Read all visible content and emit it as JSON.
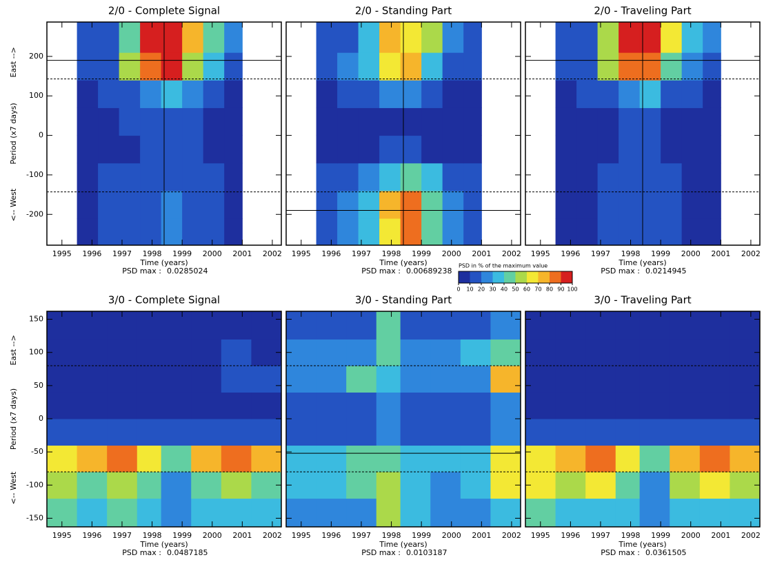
{
  "y_label_parts": [
    "<-- West",
    "Period (x7 days)",
    "East -->"
  ],
  "colorbar": {
    "label": "PSD in % of the maximum value",
    "ticks": [
      0,
      10,
      20,
      30,
      40,
      50,
      60,
      70,
      80,
      90,
      100
    ],
    "colors": [
      "#1e2f9e",
      "#2453c2",
      "#2f86dc",
      "#3bbbe0",
      "#62cfa2",
      "#abd94a",
      "#f3e834",
      "#f6b52b",
      "#ee6e1f",
      "#d61f1f"
    ]
  },
  "chart_data": [
    {
      "type": "heatmap",
      "title": "2/0 - Complete Signal",
      "x_label": "Time (years)",
      "psd_max_label": "PSD max :",
      "psd_max": 0.0285024,
      "xlim": [
        1994.5,
        2002.3
      ],
      "xticks": [
        1995,
        1996,
        1997,
        1998,
        1999,
        2000,
        2001,
        2002
      ],
      "ylim": [
        -278,
        287
      ],
      "yticks": [
        -200,
        -100,
        0,
        100,
        200
      ],
      "time_bins": [
        1995.5,
        1996.2,
        1996.9,
        1997.6,
        1998.3,
        1999.0,
        1999.7,
        2000.4,
        2001.0
      ],
      "period_bins": [
        -278,
        -210,
        -140,
        -70,
        0,
        70,
        140,
        210,
        287
      ],
      "z": [
        [
          5,
          10,
          15,
          15,
          20,
          15,
          10,
          5
        ],
        [
          5,
          10,
          10,
          15,
          20,
          15,
          10,
          5
        ],
        [
          5,
          10,
          15,
          15,
          15,
          10,
          10,
          5
        ],
        [
          5,
          5,
          5,
          10,
          10,
          10,
          5,
          5
        ],
        [
          5,
          5,
          10,
          10,
          10,
          10,
          5,
          5
        ],
        [
          5,
          10,
          15,
          25,
          30,
          20,
          10,
          5
        ],
        [
          10,
          15,
          50,
          80,
          90,
          55,
          30,
          15
        ],
        [
          10,
          15,
          40,
          90,
          95,
          70,
          40,
          20
        ]
      ],
      "hlines": [
        {
          "value": 190,
          "style": "solid"
        },
        {
          "value": 143,
          "style": "dashed"
        },
        {
          "value": -143,
          "style": "dashed"
        }
      ],
      "vlines": [
        1998.4
      ]
    },
    {
      "type": "heatmap",
      "title": "2/0 - Standing Part",
      "x_label": "Time (years)",
      "psd_max_label": "PSD max :",
      "psd_max": 0.00689238,
      "xlim": [
        1994.5,
        2002.3
      ],
      "xticks": [
        1995,
        1996,
        1997,
        1998,
        1999,
        2000,
        2001,
        2002
      ],
      "ylim": [
        -278,
        287
      ],
      "yticks": [
        -200,
        -100,
        0,
        100,
        200
      ],
      "time_bins": [
        1995.5,
        1996.2,
        1996.9,
        1997.6,
        1998.3,
        1999.0,
        1999.7,
        2000.4,
        2001.0
      ],
      "period_bins": [
        -278,
        -210,
        -140,
        -70,
        0,
        70,
        140,
        210,
        287
      ],
      "z": [
        [
          10,
          20,
          30,
          60,
          80,
          40,
          20,
          10
        ],
        [
          10,
          20,
          30,
          70,
          85,
          40,
          20,
          10
        ],
        [
          10,
          15,
          20,
          30,
          40,
          30,
          15,
          10
        ],
        [
          5,
          5,
          5,
          10,
          10,
          5,
          5,
          5
        ],
        [
          5,
          5,
          5,
          5,
          5,
          5,
          5,
          5
        ],
        [
          5,
          10,
          10,
          20,
          25,
          10,
          5,
          5
        ],
        [
          10,
          20,
          30,
          60,
          70,
          30,
          15,
          10
        ],
        [
          10,
          10,
          30,
          70,
          60,
          50,
          20,
          10
        ]
      ],
      "hlines": [
        {
          "value": 143,
          "style": "dashed"
        },
        {
          "value": -143,
          "style": "dashed"
        },
        {
          "value": -190,
          "style": "solid"
        }
      ],
      "vlines": [
        1998.4
      ]
    },
    {
      "type": "heatmap",
      "title": "2/0 - Traveling Part",
      "x_label": "Time (years)",
      "psd_max_label": "PSD max :",
      "psd_max": 0.0214945,
      "xlim": [
        1994.5,
        2002.3
      ],
      "xticks": [
        1995,
        1996,
        1997,
        1998,
        1999,
        2000,
        2001,
        2002
      ],
      "ylim": [
        -278,
        287
      ],
      "yticks": [
        -200,
        -100,
        0,
        100,
        200
      ],
      "time_bins": [
        1995.5,
        1996.2,
        1996.9,
        1997.6,
        1998.3,
        1999.0,
        1999.7,
        2000.4,
        2001.0
      ],
      "period_bins": [
        -278,
        -210,
        -140,
        -70,
        0,
        70,
        140,
        210,
        287
      ],
      "z": [
        [
          5,
          5,
          10,
          10,
          10,
          10,
          5,
          5
        ],
        [
          5,
          5,
          10,
          10,
          10,
          10,
          5,
          5
        ],
        [
          5,
          5,
          10,
          10,
          10,
          10,
          5,
          5
        ],
        [
          5,
          5,
          5,
          10,
          10,
          5,
          5,
          5
        ],
        [
          5,
          5,
          5,
          10,
          10,
          5,
          5,
          5
        ],
        [
          5,
          10,
          15,
          25,
          30,
          15,
          10,
          5
        ],
        [
          10,
          15,
          50,
          80,
          85,
          45,
          25,
          15
        ],
        [
          10,
          15,
          50,
          90,
          90,
          60,
          30,
          20
        ]
      ],
      "hlines": [
        {
          "value": 190,
          "style": "solid"
        },
        {
          "value": 143,
          "style": "dashed"
        },
        {
          "value": -143,
          "style": "dashed"
        }
      ],
      "vlines": [
        1998.4
      ]
    },
    {
      "type": "heatmap",
      "title": "3/0 - Complete Signal",
      "x_label": "Time (years)",
      "psd_max_label": "PSD max :",
      "psd_max": 0.0487185,
      "xlim": [
        1994.5,
        2002.3
      ],
      "xticks": [
        1995,
        1996,
        1997,
        1998,
        1999,
        2000,
        2001,
        2002
      ],
      "ylim": [
        -163,
        162
      ],
      "yticks": [
        -150,
        -100,
        -50,
        0,
        50,
        100,
        150
      ],
      "time_bins": [
        1994.5,
        1995.5,
        1996.5,
        1997.5,
        1998.3,
        1999.3,
        2000.3,
        2001.3,
        2002.3
      ],
      "period_bins": [
        -163,
        -120,
        -80,
        -40,
        0,
        40,
        80,
        120,
        162
      ],
      "z": [
        [
          40,
          30,
          40,
          30,
          20,
          30,
          30,
          30
        ],
        [
          50,
          45,
          50,
          40,
          25,
          45,
          50,
          40
        ],
        [
          60,
          70,
          80,
          60,
          40,
          70,
          80,
          70
        ],
        [
          10,
          10,
          10,
          10,
          10,
          10,
          10,
          10
        ],
        [
          5,
          5,
          5,
          5,
          5,
          5,
          5,
          5
        ],
        [
          5,
          5,
          5,
          5,
          5,
          5,
          10,
          10
        ],
        [
          5,
          5,
          5,
          5,
          5,
          5,
          10,
          5
        ],
        [
          5,
          5,
          5,
          5,
          5,
          5,
          5,
          5
        ]
      ],
      "hlines": [
        {
          "value": 80,
          "style": "dashed"
        },
        {
          "value": -80,
          "style": "dashed"
        }
      ],
      "vlines": []
    },
    {
      "type": "heatmap",
      "title": "3/0 - Standing Part",
      "x_label": "Time (years)",
      "psd_max_label": "PSD max :",
      "psd_max": 0.0103187,
      "xlim": [
        1994.5,
        2002.3
      ],
      "xticks": [
        1995,
        1996,
        1997,
        1998,
        1999,
        2000,
        2001,
        2002
      ],
      "ylim": [
        -163,
        162
      ],
      "yticks": [
        -150,
        -100,
        -50,
        0,
        50,
        100,
        150
      ],
      "time_bins": [
        1994.5,
        1995.5,
        1996.5,
        1997.5,
        1998.3,
        1999.3,
        2000.3,
        2001.3,
        2002.3
      ],
      "period_bins": [
        -163,
        -120,
        -80,
        -40,
        0,
        40,
        80,
        120,
        162
      ],
      "z": [
        [
          20,
          20,
          20,
          50,
          30,
          20,
          20,
          30
        ],
        [
          30,
          30,
          40,
          50,
          30,
          20,
          30,
          60
        ],
        [
          30,
          30,
          40,
          40,
          30,
          30,
          30,
          60
        ],
        [
          15,
          15,
          15,
          20,
          15,
          15,
          15,
          20
        ],
        [
          15,
          15,
          15,
          20,
          15,
          15,
          15,
          20
        ],
        [
          20,
          25,
          40,
          30,
          20,
          20,
          25,
          70
        ],
        [
          20,
          20,
          20,
          40,
          20,
          20,
          30,
          40
        ],
        [
          10,
          10,
          10,
          40,
          15,
          10,
          15,
          20
        ]
      ],
      "hlines": [
        {
          "value": 80,
          "style": "dashed"
        },
        {
          "value": -52,
          "style": "solid"
        },
        {
          "value": -80,
          "style": "dashed"
        }
      ],
      "vlines": []
    },
    {
      "type": "heatmap",
      "title": "3/0 - Traveling Part",
      "x_label": "Time (years)",
      "psd_max_label": "PSD max :",
      "psd_max": 0.0361505,
      "xlim": [
        1994.5,
        2002.3
      ],
      "xticks": [
        1995,
        1996,
        1997,
        1998,
        1999,
        2000,
        2001,
        2002
      ],
      "ylim": [
        -163,
        162
      ],
      "yticks": [
        -150,
        -100,
        -50,
        0,
        50,
        100,
        150
      ],
      "time_bins": [
        1994.5,
        1995.5,
        1996.5,
        1997.5,
        1998.3,
        1999.3,
        2000.3,
        2001.3,
        2002.3
      ],
      "period_bins": [
        -163,
        -120,
        -80,
        -40,
        0,
        40,
        80,
        120,
        162
      ],
      "z": [
        [
          40,
          30,
          30,
          30,
          20,
          30,
          30,
          30
        ],
        [
          60,
          50,
          60,
          40,
          25,
          50,
          60,
          50
        ],
        [
          60,
          75,
          85,
          60,
          40,
          70,
          85,
          70
        ],
        [
          10,
          10,
          10,
          10,
          10,
          10,
          10,
          10
        ],
        [
          5,
          5,
          5,
          5,
          5,
          5,
          5,
          5
        ],
        [
          5,
          5,
          5,
          5,
          5,
          5,
          5,
          5
        ],
        [
          5,
          5,
          5,
          5,
          5,
          5,
          5,
          5
        ],
        [
          5,
          5,
          5,
          5,
          5,
          5,
          5,
          5
        ]
      ],
      "hlines": [
        {
          "value": 80,
          "style": "dashed"
        },
        {
          "value": -80,
          "style": "dashed"
        }
      ],
      "vlines": []
    }
  ]
}
